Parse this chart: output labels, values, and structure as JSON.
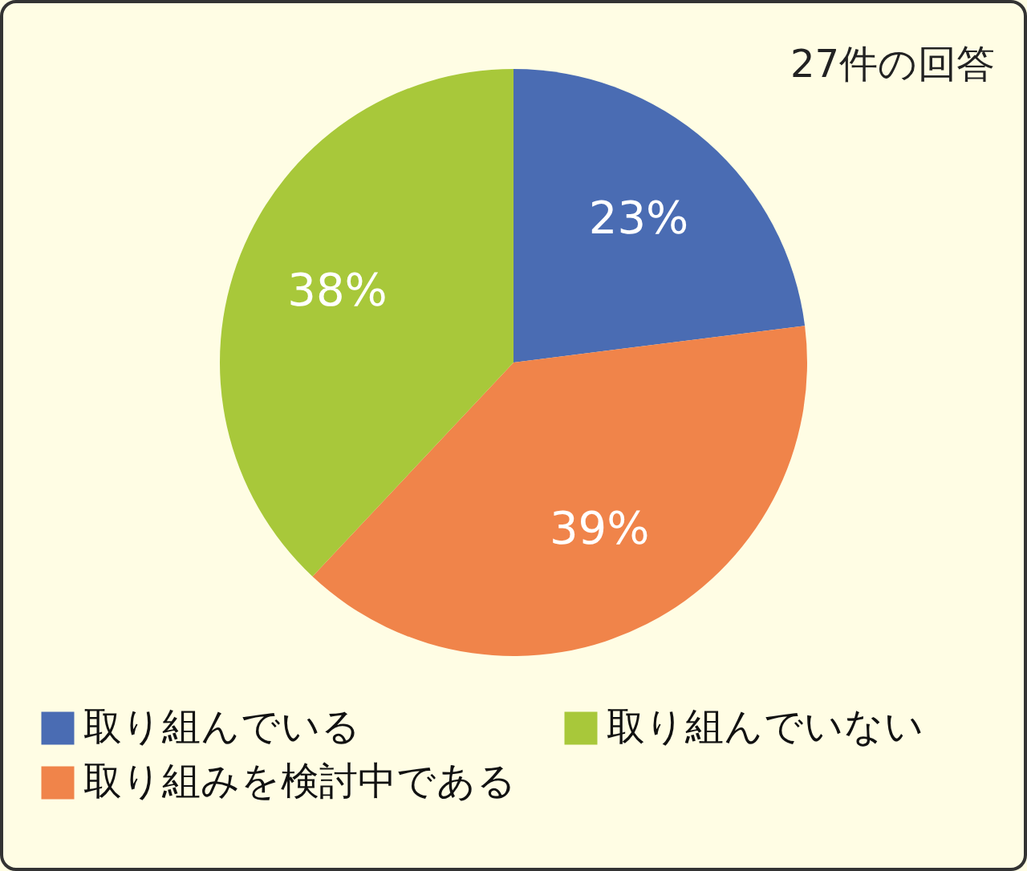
{
  "chart_data": {
    "type": "pie",
    "categories": [
      "取り組んでいる",
      "取り組みを検討中である",
      "取り組んでいない"
    ],
    "values": [
      23,
      39,
      38
    ],
    "colors": [
      "#4a6cb3",
      "#f0844a",
      "#a8c83a"
    ],
    "value_labels": [
      "23%",
      "39%",
      "38%"
    ],
    "annotations": [
      "27件の回答"
    ],
    "legend": "bottom"
  }
}
